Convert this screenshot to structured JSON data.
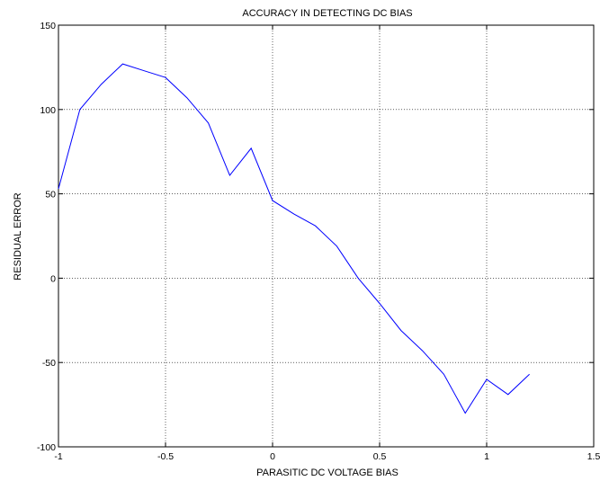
{
  "chart_data": {
    "type": "line",
    "title": "ACCURACY IN DETECTING DC BIAS",
    "xlabel": "PARASITIC DC VOLTAGE BIAS",
    "ylabel": "RESIDUAL ERROR",
    "xlim": [
      -1,
      1.5
    ],
    "ylim": [
      -100,
      150
    ],
    "xticks": [
      -1,
      -0.5,
      0,
      0.5,
      1,
      1.5
    ],
    "xtick_labels": [
      "-1",
      "-0.5",
      "0",
      "0.5",
      "1",
      "1.5"
    ],
    "yticks": [
      -100,
      -50,
      0,
      50,
      100,
      150
    ],
    "ytick_labels": [
      "-100",
      "-50",
      "0",
      "50",
      "100",
      "150"
    ],
    "grid": true,
    "line_color": "#0000ff",
    "series": [
      {
        "x": [
          -1.0,
          -0.9,
          -0.8,
          -0.7,
          -0.6,
          -0.5,
          -0.4,
          -0.3,
          -0.2,
          -0.1,
          0.0,
          0.1,
          0.2,
          0.3,
          0.4,
          0.5,
          0.6,
          0.7,
          0.8,
          0.9,
          1.0,
          1.1,
          1.2
        ],
        "values": [
          53,
          100,
          115,
          127,
          123,
          119,
          107,
          92,
          61,
          77,
          46,
          38,
          31,
          19,
          0,
          -15,
          -31,
          -43,
          -57,
          -80,
          -60,
          -69,
          -57
        ]
      }
    ]
  }
}
